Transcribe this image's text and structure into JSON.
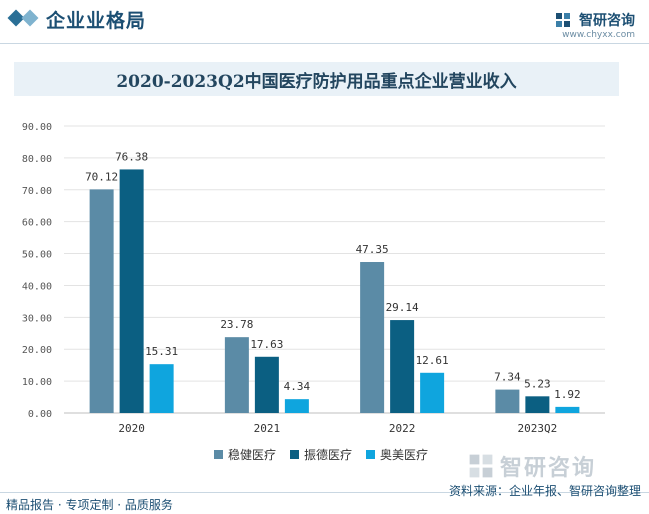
{
  "header": {
    "title": "企业业格局",
    "brand_name": "智研咨询",
    "brand_url": "www.chyxx.com"
  },
  "chart_data": {
    "type": "bar",
    "title": "2020-2023Q2中国医疗防护用品重点企业营业收入",
    "categories": [
      "2020",
      "2021",
      "2022",
      "2023Q2"
    ],
    "series": [
      {
        "name": "稳健医疗",
        "color": "#5b8ba6",
        "values": [
          70.12,
          23.78,
          47.35,
          7.34
        ]
      },
      {
        "name": "振德医疗",
        "color": "#0b5f82",
        "values": [
          76.38,
          17.63,
          29.14,
          5.23
        ]
      },
      {
        "name": "奥美医疗",
        "color": "#0fa5de",
        "values": [
          15.31,
          4.34,
          12.61,
          1.92
        ]
      }
    ],
    "value_labels": [
      [
        "70.12",
        "23.78",
        "47.35",
        "7.34"
      ],
      [
        "76.38",
        "17.63",
        "29.14",
        "5.23"
      ],
      [
        "15.31",
        "4.34",
        "12.61",
        "1.92"
      ]
    ],
    "yticks": [
      "0.00",
      "10.00",
      "20.00",
      "30.00",
      "40.00",
      "50.00",
      "60.00",
      "70.00",
      "80.00",
      "90.00"
    ],
    "ylim": [
      0,
      90
    ],
    "xlabel": "",
    "ylabel": "",
    "grid": true,
    "legend_position": "bottom"
  },
  "footer": {
    "left_text": "精品报告 · 专项定制 · 品质服务",
    "source_text": "资料来源：企业年报、智研咨询整理"
  },
  "watermark": {
    "brand_name": "智研咨询"
  }
}
